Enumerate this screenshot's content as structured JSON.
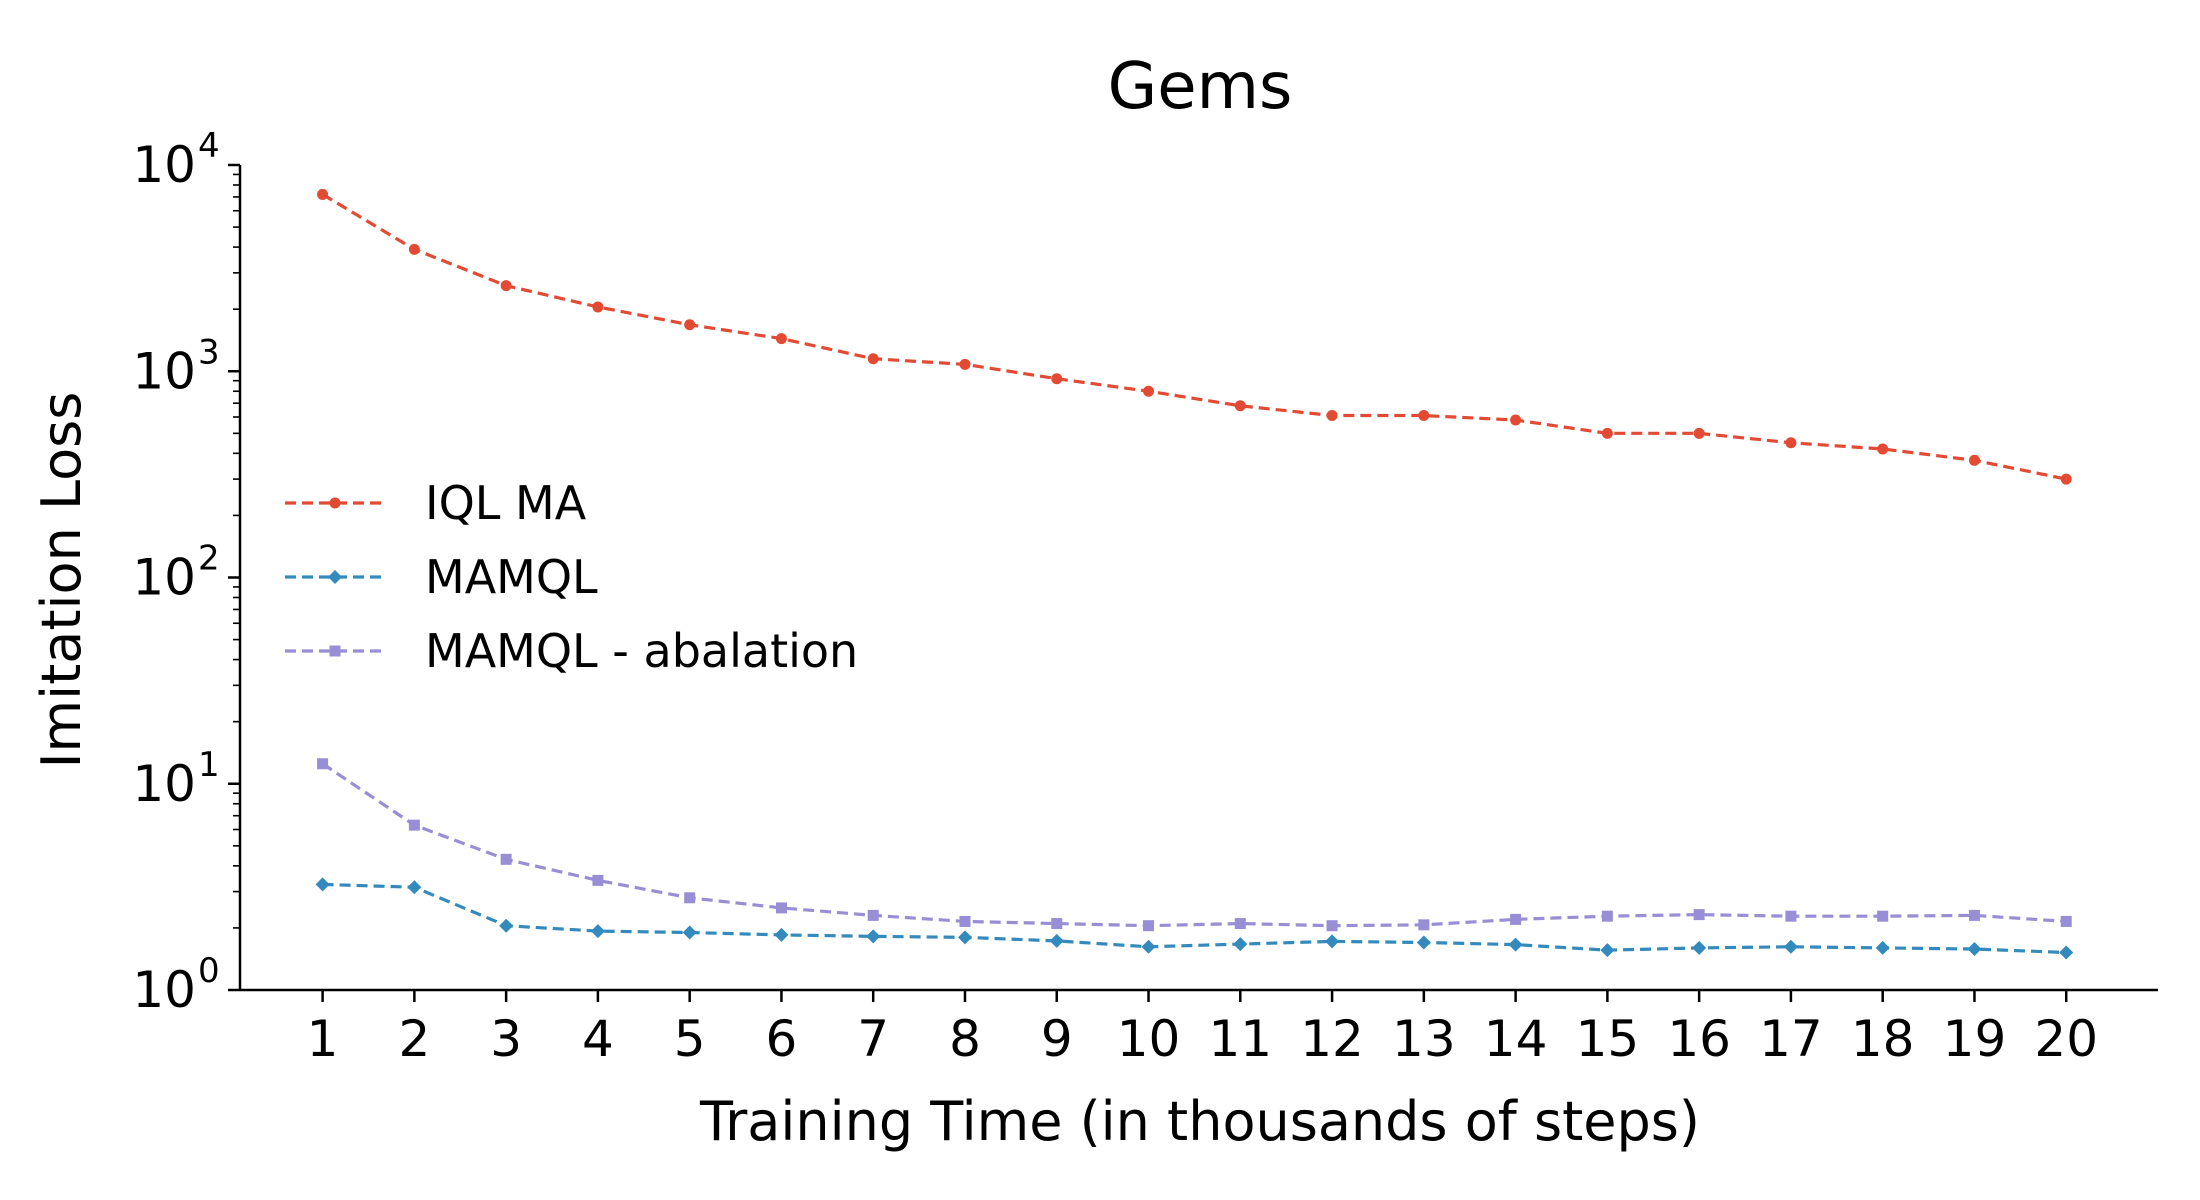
{
  "chart_data": {
    "type": "line",
    "title": "Gems",
    "xlabel": "Training Time (in thousands of steps)",
    "ylabel": "Imitation Loss",
    "yscale": "log",
    "ylim": [
      1,
      10000
    ],
    "xlim": [
      0.1,
      21
    ],
    "x": [
      1,
      2,
      3,
      4,
      5,
      6,
      7,
      8,
      9,
      10,
      11,
      12,
      13,
      14,
      15,
      16,
      17,
      18,
      19,
      20
    ],
    "x_ticks": [
      "1",
      "2",
      "3",
      "4",
      "5",
      "6",
      "7",
      "8",
      "9",
      "10",
      "11",
      "12",
      "13",
      "14",
      "15",
      "16",
      "17",
      "18",
      "19",
      "20"
    ],
    "y_ticks": [
      {
        "base": "10",
        "exp": "0",
        "value": 1
      },
      {
        "base": "10",
        "exp": "1",
        "value": 10
      },
      {
        "base": "10",
        "exp": "2",
        "value": 100
      },
      {
        "base": "10",
        "exp": "3",
        "value": 1000
      },
      {
        "base": "10",
        "exp": "4",
        "value": 10000
      }
    ],
    "grid": false,
    "legend_position": "center-left",
    "series": [
      {
        "name": "IQL MA",
        "color": "#e24a33",
        "marker": "circle",
        "line_style": "dashed",
        "values": [
          7200,
          3900,
          2600,
          2050,
          1680,
          1440,
          1150,
          1080,
          920,
          800,
          680,
          610,
          610,
          580,
          500,
          500,
          450,
          420,
          370,
          300
        ]
      },
      {
        "name": "MAMQL",
        "color": "#348abd",
        "marker": "diamond",
        "line_style": "dashed",
        "values": [
          3.25,
          3.15,
          2.05,
          1.93,
          1.9,
          1.85,
          1.82,
          1.8,
          1.73,
          1.62,
          1.67,
          1.72,
          1.7,
          1.66,
          1.56,
          1.6,
          1.62,
          1.6,
          1.58,
          1.52
        ]
      },
      {
        "name": "MAMQL - abalation",
        "color": "#988ed5",
        "marker": "square",
        "line_style": "dashed",
        "values": [
          12.5,
          6.3,
          4.3,
          3.4,
          2.8,
          2.5,
          2.3,
          2.15,
          2.1,
          2.05,
          2.1,
          2.05,
          2.07,
          2.2,
          2.28,
          2.32,
          2.28,
          2.28,
          2.3,
          2.15
        ]
      }
    ]
  }
}
